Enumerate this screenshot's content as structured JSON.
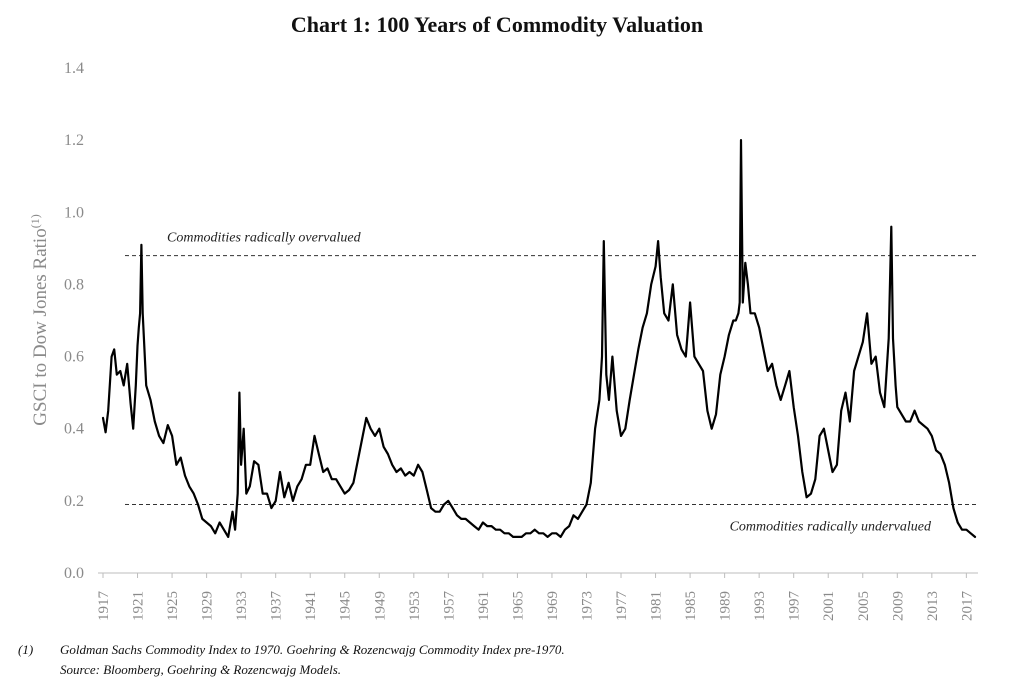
{
  "chart_data": {
    "type": "line",
    "title": "Chart 1: 100 Years of Commodity Valuation",
    "ylabel": "GSCI to Dow Jones Ratio",
    "ylabel_superscript": "(1)",
    "ylim": [
      0,
      1.4
    ],
    "yticks": [
      "0.0",
      "0.2",
      "0.4",
      "0.6",
      "0.8",
      "1.0",
      "1.2",
      "1.4"
    ],
    "xlim": [
      1917,
      2018
    ],
    "xticks": [
      "1917",
      "1921",
      "1925",
      "1929",
      "1933",
      "1937",
      "1941",
      "1945",
      "1949",
      "1953",
      "1957",
      "1961",
      "1965",
      "1969",
      "1973",
      "1977",
      "1981",
      "1985",
      "1989",
      "1993",
      "1997",
      "2001",
      "2005",
      "2009",
      "2013",
      "2017"
    ],
    "grid": false,
    "reference_lines": [
      {
        "y": 0.88,
        "label": "Commodities radically overvalued",
        "label_position": "above-left"
      },
      {
        "y": 0.19,
        "label": "Commodities radically undervalued",
        "label_position": "below-right"
      }
    ],
    "series": [
      {
        "color": "#000000",
        "x": [
          1917.0,
          1917.3,
          1917.6,
          1918.0,
          1918.3,
          1918.6,
          1919.0,
          1919.4,
          1919.8,
          1920.2,
          1920.5,
          1920.8,
          1921.0,
          1921.15,
          1921.3,
          1921.45,
          1921.6,
          1922.0,
          1922.5,
          1923.0,
          1923.5,
          1924.0,
          1924.5,
          1925.0,
          1925.5,
          1926.0,
          1926.5,
          1927.0,
          1927.5,
          1928.0,
          1928.5,
          1929.0,
          1929.5,
          1930.0,
          1930.5,
          1931.0,
          1931.5,
          1932.0,
          1932.3,
          1932.6,
          1932.8,
          1933.0,
          1933.3,
          1933.6,
          1934.0,
          1934.5,
          1935.0,
          1935.5,
          1936.0,
          1936.5,
          1937.0,
          1937.5,
          1938.0,
          1938.5,
          1939.0,
          1939.5,
          1940.0,
          1940.5,
          1941.0,
          1941.5,
          1942.0,
          1942.5,
          1943.0,
          1943.5,
          1944.0,
          1944.5,
          1945.0,
          1945.5,
          1946.0,
          1946.5,
          1947.0,
          1947.5,
          1948.0,
          1948.5,
          1949.0,
          1949.5,
          1950.0,
          1950.5,
          1951.0,
          1951.5,
          1952.0,
          1952.5,
          1953.0,
          1953.5,
          1954.0,
          1954.5,
          1955.0,
          1955.5,
          1956.0,
          1956.5,
          1957.0,
          1957.5,
          1958.0,
          1958.5,
          1959.0,
          1959.5,
          1960.0,
          1960.5,
          1961.0,
          1961.5,
          1962.0,
          1962.5,
          1963.0,
          1963.5,
          1964.0,
          1964.5,
          1965.0,
          1965.5,
          1966.0,
          1966.5,
          1967.0,
          1967.5,
          1968.0,
          1968.5,
          1969.0,
          1969.5,
          1970.0,
          1970.5,
          1971.0,
          1971.5,
          1972.0,
          1972.5,
          1973.0,
          1973.5,
          1974.0,
          1974.5,
          1974.8,
          1975.0,
          1975.3,
          1975.6,
          1976.0,
          1976.5,
          1977.0,
          1977.5,
          1978.0,
          1978.5,
          1979.0,
          1979.5,
          1980.0,
          1980.5,
          1981.0,
          1981.3,
          1981.6,
          1982.0,
          1982.5,
          1983.0,
          1983.5,
          1984.0,
          1984.5,
          1985.0,
          1985.5,
          1986.0,
          1986.5,
          1987.0,
          1987.5,
          1988.0,
          1988.5,
          1989.0,
          1989.5,
          1990.0,
          1990.3,
          1990.6,
          1990.75,
          1990.9,
          1991.1,
          1991.4,
          1991.7,
          1992.0,
          1992.5,
          1993.0,
          1993.5,
          1994.0,
          1994.5,
          1995.0,
          1995.5,
          1996.0,
          1996.5,
          1997.0,
          1997.5,
          1998.0,
          1998.5,
          1999.0,
          1999.5,
          2000.0,
          2000.5,
          2001.0,
          2001.5,
          2002.0,
          2002.5,
          2003.0,
          2003.5,
          2004.0,
          2004.5,
          2005.0,
          2005.5,
          2006.0,
          2006.5,
          2007.0,
          2007.5,
          2008.0,
          2008.3,
          2008.5,
          2008.8,
          2009.0,
          2009.5,
          2010.0,
          2010.5,
          2011.0,
          2011.5,
          2012.0,
          2012.5,
          2013.0,
          2013.5,
          2014.0,
          2014.5,
          2015.0,
          2015.5,
          2016.0,
          2016.5,
          2017.0,
          2017.5,
          2018.0
        ],
        "y": [
          0.43,
          0.39,
          0.45,
          0.6,
          0.62,
          0.55,
          0.56,
          0.52,
          0.58,
          0.47,
          0.4,
          0.52,
          0.63,
          0.68,
          0.72,
          0.91,
          0.72,
          0.52,
          0.48,
          0.42,
          0.38,
          0.36,
          0.41,
          0.38,
          0.3,
          0.32,
          0.27,
          0.24,
          0.22,
          0.19,
          0.15,
          0.14,
          0.13,
          0.11,
          0.14,
          0.12,
          0.1,
          0.17,
          0.12,
          0.22,
          0.5,
          0.3,
          0.4,
          0.22,
          0.24,
          0.31,
          0.3,
          0.22,
          0.22,
          0.18,
          0.2,
          0.28,
          0.21,
          0.25,
          0.2,
          0.24,
          0.26,
          0.3,
          0.3,
          0.38,
          0.33,
          0.28,
          0.29,
          0.26,
          0.26,
          0.24,
          0.22,
          0.23,
          0.25,
          0.31,
          0.37,
          0.43,
          0.4,
          0.38,
          0.4,
          0.35,
          0.33,
          0.3,
          0.28,
          0.29,
          0.27,
          0.28,
          0.27,
          0.3,
          0.28,
          0.23,
          0.18,
          0.17,
          0.17,
          0.19,
          0.2,
          0.18,
          0.16,
          0.15,
          0.15,
          0.14,
          0.13,
          0.12,
          0.14,
          0.13,
          0.13,
          0.12,
          0.12,
          0.11,
          0.11,
          0.1,
          0.1,
          0.1,
          0.11,
          0.11,
          0.12,
          0.11,
          0.11,
          0.1,
          0.11,
          0.11,
          0.1,
          0.12,
          0.13,
          0.16,
          0.15,
          0.17,
          0.19,
          0.25,
          0.4,
          0.48,
          0.6,
          0.92,
          0.55,
          0.48,
          0.6,
          0.45,
          0.38,
          0.4,
          0.48,
          0.55,
          0.62,
          0.68,
          0.72,
          0.8,
          0.85,
          0.92,
          0.82,
          0.72,
          0.7,
          0.8,
          0.66,
          0.62,
          0.6,
          0.75,
          0.6,
          0.58,
          0.56,
          0.45,
          0.4,
          0.44,
          0.55,
          0.6,
          0.66,
          0.7,
          0.7,
          0.72,
          0.75,
          1.2,
          0.75,
          0.86,
          0.8,
          0.72,
          0.72,
          0.68,
          0.62,
          0.56,
          0.58,
          0.52,
          0.48,
          0.52,
          0.56,
          0.46,
          0.38,
          0.28,
          0.21,
          0.22,
          0.26,
          0.38,
          0.4,
          0.34,
          0.28,
          0.3,
          0.45,
          0.5,
          0.42,
          0.56,
          0.6,
          0.64,
          0.72,
          0.58,
          0.6,
          0.5,
          0.46,
          0.65,
          0.96,
          0.65,
          0.52,
          0.46,
          0.44,
          0.42,
          0.42,
          0.45,
          0.42,
          0.41,
          0.4,
          0.38,
          0.34,
          0.33,
          0.3,
          0.25,
          0.18,
          0.14,
          0.12,
          0.12,
          0.11,
          0.1
        ]
      }
    ]
  },
  "footnote": {
    "marker": "(1)",
    "line1": "Goldman Sachs Commodity Index to 1970.  Goehring & Rozencwajg Commodity Index pre-1970.",
    "line2": "Source: Bloomberg, Goehring & Rozencwajg Models."
  }
}
